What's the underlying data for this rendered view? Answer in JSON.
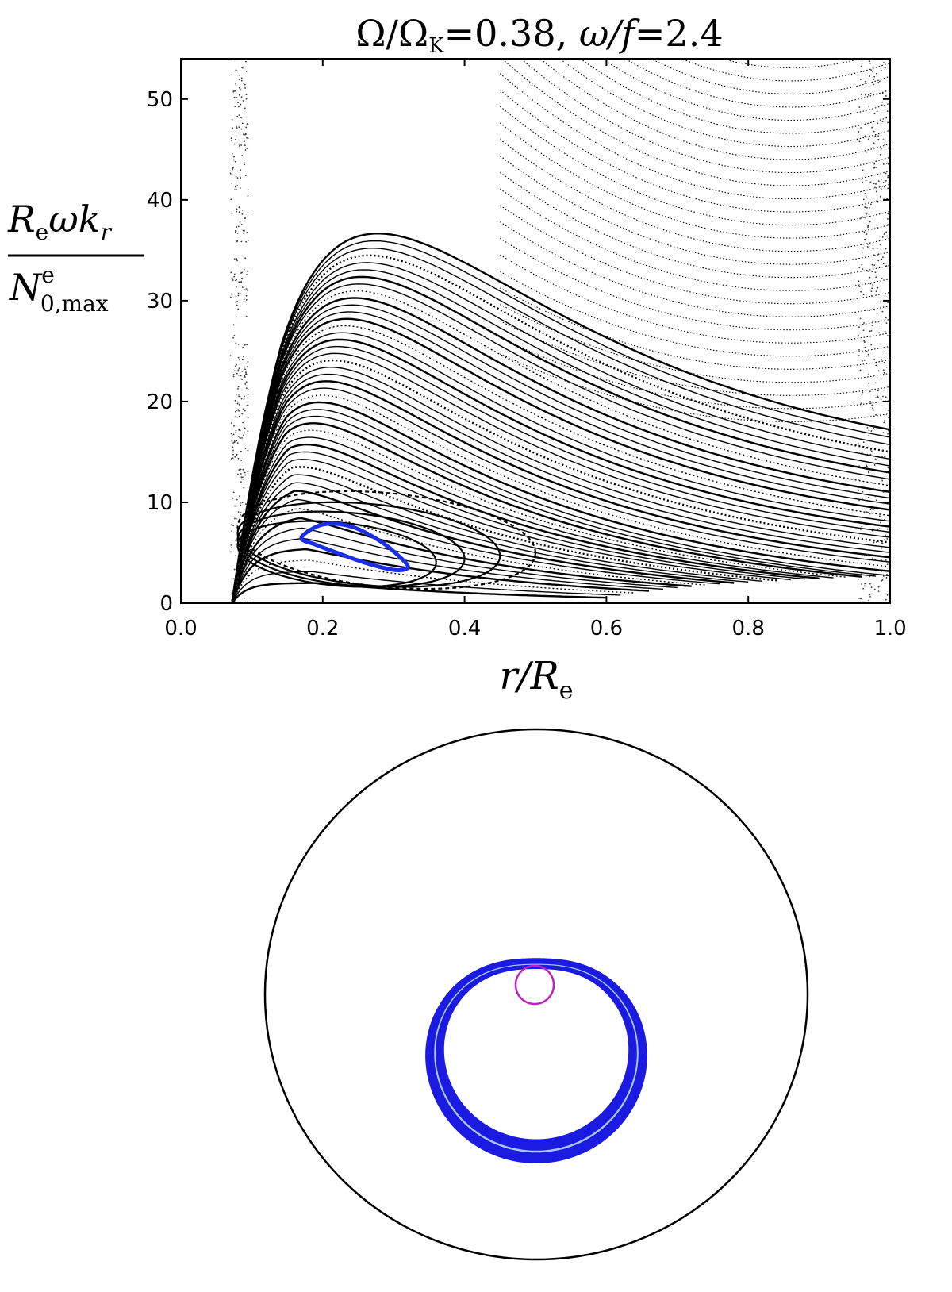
{
  "chart_data": [
    {
      "type": "scatter",
      "title": "Ω/Ω_K = 0.38, ω/f = 2.4",
      "title_parts": {
        "a": "Ω/Ω",
        "a_sub": "K",
        "b": "=0.38, ",
        "c": "ω/f",
        "d": "=2.4"
      },
      "xlabel": "r/R_e",
      "xlabel_parts": {
        "main": "r/R",
        "sub": "e"
      },
      "ylabel": "R_e ω k_r / N^e_0,max",
      "ylabel_parts": {
        "num_main": "R",
        "num_sub": "e",
        "num_rest": "ωk",
        "num_sub2": "r",
        "den_main": "N",
        "den_sup": "e",
        "den_sub": "0,max"
      },
      "xlim": [
        0.0,
        1.0
      ],
      "ylim": [
        0,
        54
      ],
      "x_ticks": [
        "0.0",
        "0.2",
        "0.4",
        "0.6",
        "0.8",
        "1.0"
      ],
      "y_ticks": [
        "0",
        "10",
        "20",
        "30",
        "40",
        "50"
      ],
      "grid": false,
      "colors": {
        "orbits": "#000000",
        "highlight": "#1a2ee6"
      },
      "series": [
        {
          "kind": "closed-orbit",
          "color": "#1a2ee6",
          "x": [
            0.17,
            0.2,
            0.24,
            0.28,
            0.31,
            0.32,
            0.3,
            0.26,
            0.22,
            0.19,
            0.17
          ],
          "y": [
            6.5,
            7.8,
            7.6,
            6.2,
            4.5,
            3.5,
            3.3,
            4.0,
            5.0,
            5.8,
            6.5
          ]
        }
      ]
    },
    {
      "type": "scatter",
      "xlim": [
        -1,
        1
      ],
      "ylim": [
        -1,
        1
      ],
      "colors": {
        "boundary": "#000000",
        "trajectory": "#1a1ae0",
        "trajectory_inner": "#a8c8f0",
        "inner_circle": "#c020c0"
      },
      "series": [
        {
          "kind": "boundary-circle",
          "radius": 1.0,
          "center": [
            0,
            0
          ]
        },
        {
          "kind": "inner-circle",
          "radius": 0.07,
          "center": [
            0,
            0.07
          ]
        },
        {
          "kind": "ray-trajectory",
          "r_min": 0.07,
          "r_max": 0.36
        }
      ]
    }
  ]
}
